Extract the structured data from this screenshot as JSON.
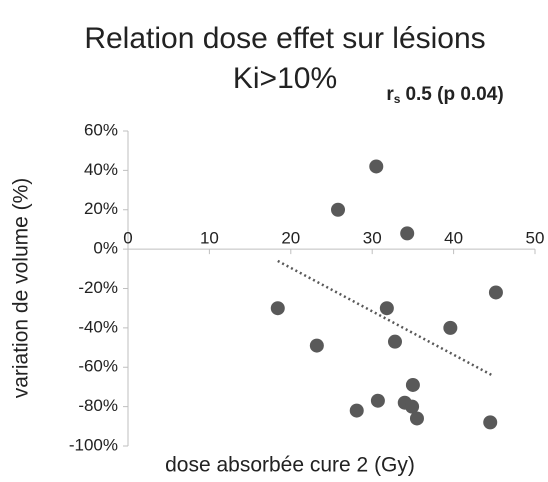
{
  "chart_data": {
    "type": "scatter",
    "title": [
      "Relation dose effet sur lésions",
      "Ki>10%"
    ],
    "annotation": {
      "symbol": "r",
      "subscript": "s",
      "text": "0.5 (p 0.04)"
    },
    "xlabel": "dose absorbée cure 2 (Gy)",
    "ylabel": "variation de volume (%)",
    "x": [
      30.5,
      25.8,
      34.3,
      18.4,
      23.2,
      31.8,
      45.2,
      39.6,
      32.8,
      35.0,
      28.1,
      30.7,
      34.0,
      34.9,
      35.5,
      44.5
    ],
    "y": [
      42,
      20,
      8,
      -30,
      -49,
      -30,
      -22,
      -40,
      -47,
      -69,
      -82,
      -77,
      -78,
      -80,
      -86,
      -88
    ],
    "color": "#595959",
    "trendline": {
      "x": [
        18.4,
        44.7
      ],
      "y": [
        -6,
        -64
      ]
    },
    "xlim": [
      0,
      50
    ],
    "xticks": [
      0,
      10,
      20,
      30,
      40,
      50
    ],
    "ylim": [
      -100,
      60
    ],
    "yticks": [
      {
        "value": -100,
        "label": "-100%"
      },
      {
        "value": -80,
        "label": "-80%"
      },
      {
        "value": -60,
        "label": "-60%"
      },
      {
        "value": -40,
        "label": "-40%"
      },
      {
        "value": -20,
        "label": "-20%"
      },
      {
        "value": 0,
        "label": "0%"
      },
      {
        "value": 20,
        "label": "20%"
      },
      {
        "value": 40,
        "label": "40%"
      },
      {
        "value": 60,
        "label": "60%"
      }
    ]
  }
}
